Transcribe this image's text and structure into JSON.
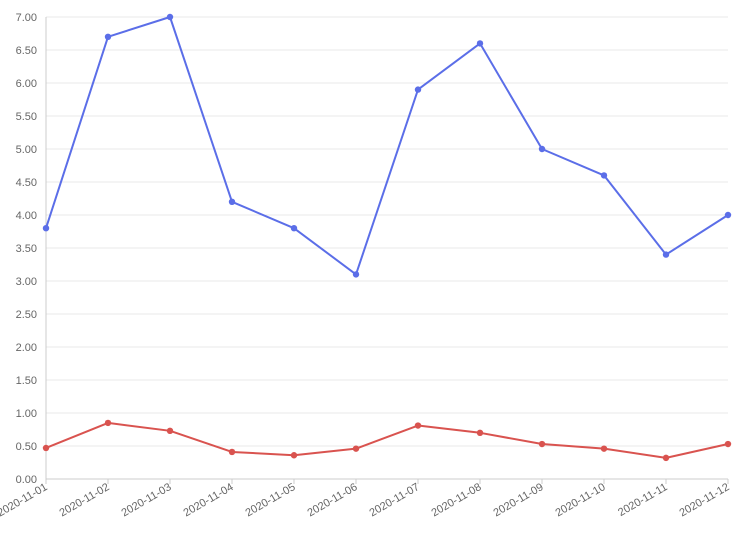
{
  "chart_data": {
    "type": "line",
    "title": "",
    "xlabel": "",
    "ylabel": "",
    "x": [
      "2020-11-01",
      "2020-11-02",
      "2020-11-03",
      "2020-11-04",
      "2020-11-05",
      "2020-11-06",
      "2020-11-07",
      "2020-11-08",
      "2020-11-09",
      "2020-11-10",
      "2020-11-11",
      "2020-11-12"
    ],
    "yticks": [
      "0.00",
      "0.50",
      "1.00",
      "1.50",
      "2.00",
      "2.50",
      "3.00",
      "3.50",
      "4.00",
      "4.50",
      "5.00",
      "5.50",
      "6.00",
      "6.50",
      "7.00"
    ],
    "ylim": [
      0,
      7
    ],
    "grid": true,
    "series": [
      {
        "color": "#5b6ee8",
        "values": [
          3.8,
          6.7,
          7.0,
          4.2,
          3.8,
          3.1,
          5.9,
          6.6,
          5.0,
          4.6,
          3.4,
          4.0
        ]
      },
      {
        "color": "#d9534f",
        "values": [
          0.47,
          0.85,
          0.73,
          0.41,
          0.36,
          0.46,
          0.81,
          0.7,
          0.53,
          0.46,
          0.32,
          0.53
        ]
      }
    ]
  }
}
